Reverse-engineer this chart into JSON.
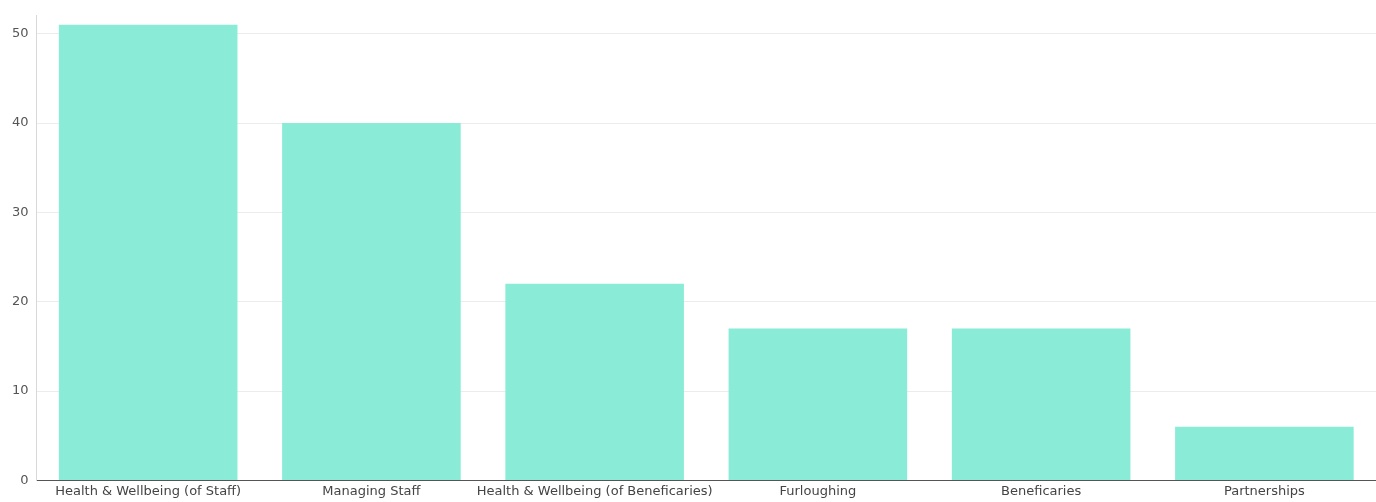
{
  "chart_data": {
    "type": "bar",
    "categories": [
      "Health & Wellbeing (of Staff)",
      "Managing Staff",
      "Health & Wellbeing (of Beneficaries)",
      "Furloughing",
      "Beneficaries",
      "Partnerships"
    ],
    "values": [
      51,
      40,
      22,
      17,
      17,
      6
    ],
    "color": "#8aecd6",
    "ylim": [
      0,
      52
    ],
    "yticks": [
      0,
      10,
      20,
      30,
      40,
      50
    ],
    "grid": "y",
    "legend": false
  }
}
